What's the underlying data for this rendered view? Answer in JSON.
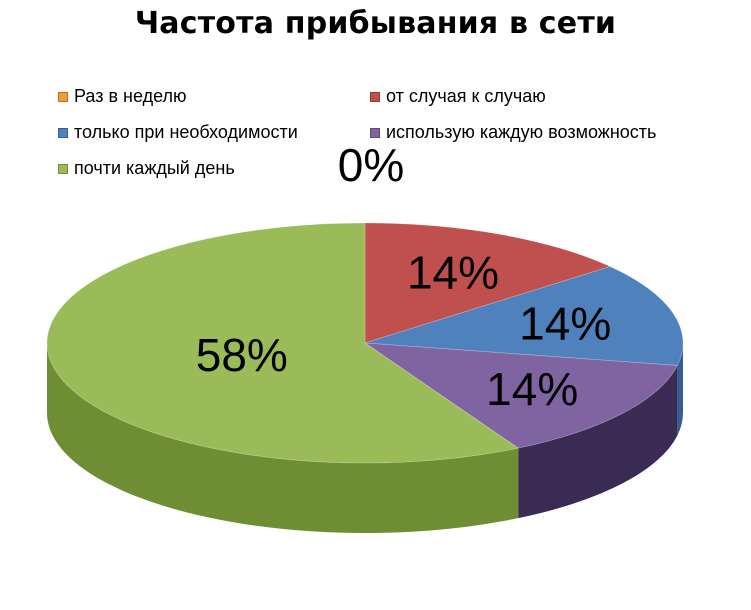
{
  "chart_data": {
    "type": "pie",
    "title": "Частота прибывания в сети",
    "categories": [
      "Раз в неделю",
      "от случая к случаю",
      "только при необходимости",
      "использую каждую возможность",
      "почти каждый день"
    ],
    "values": [
      0,
      14,
      14,
      14,
      58
    ],
    "data_labels": [
      "0%",
      "14%",
      "14%",
      "14%",
      "58%"
    ],
    "colors": [
      "#F59B32",
      "#C0504D",
      "#4F81BD",
      "#8064A2",
      "#9BBB59"
    ],
    "side_colors": [
      "#B86E1E",
      "#8C3431",
      "#335E93",
      "#3A2B55",
      "#6F8E34"
    ],
    "style": "3d",
    "legend_position": "top"
  }
}
